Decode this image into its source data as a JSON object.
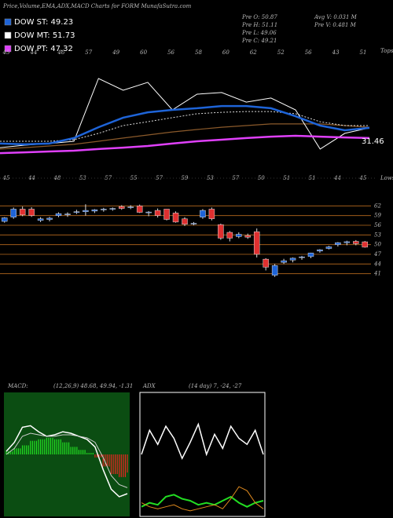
{
  "header": {
    "title": "Price,Volume,EMA,ADX,MACD Charts for FORM MunafaSutra.com",
    "legend": [
      {
        "label": "DOW ST: 49.23",
        "color": "#1e64d8"
      },
      {
        "label": "DOW MT: 51.73",
        "color": "#ffffff"
      },
      {
        "label": "DOW PT: 47.32",
        "color": "#e040fb"
      }
    ],
    "info": [
      "Pre  O: 50.87",
      "Pre  H: 51.11",
      "Pre  L: 49.06",
      "Pre  C: 49.21",
      "Avg V: 0.031 M",
      "Pre  V: 0.481 M"
    ]
  },
  "chart_data": [
    {
      "type": "line",
      "tops_label": "Tops",
      "lows_label": "Lows",
      "annotation": "31.46",
      "tops": [
        "45",
        "44",
        "46",
        "57",
        "49",
        "60",
        "56",
        "58",
        "60",
        "62",
        "52",
        "56",
        "43",
        "51"
      ],
      "lows": [
        "45",
        "44",
        "48",
        "53",
        "57",
        "55",
        "57",
        "59",
        "53",
        "57",
        "50",
        "51",
        "51",
        "44",
        "45"
      ],
      "ylim": [
        20,
        70
      ],
      "series": [
        {
          "color": "#8b5a2b",
          "width": 1.2,
          "values": [
            25.8,
            26.5,
            27.3,
            28.1,
            29.6,
            31.2,
            32.7,
            34.2,
            35.4,
            36.5,
            37.3,
            38.1,
            38.1,
            38.1,
            37.3,
            36.5
          ]
        },
        {
          "color": "#dddddd",
          "width": 1,
          "dash": true,
          "values": [
            29.6,
            29.6,
            29.6,
            30.4,
            33.5,
            37.3,
            39.2,
            41.2,
            43.1,
            43.8,
            44.2,
            44.2,
            43.1,
            39.2,
            37.3,
            37.3
          ]
        },
        {
          "color": "#ffffff",
          "width": 1,
          "values": [
            26.5,
            27.7,
            28.5,
            29.6,
            60.4,
            54.6,
            58.5,
            45,
            52.7,
            53.5,
            48.8,
            50.8,
            45,
            25.8,
            33.5,
            36.2
          ]
        },
        {
          "color": "#1e64d8",
          "width": 2.5,
          "values": [
            28.5,
            28.1,
            28.5,
            31.2,
            36.5,
            41.2,
            43.8,
            45,
            45.8,
            46.9,
            46.9,
            45.8,
            41.9,
            37.3,
            35,
            36.2
          ]
        },
        {
          "color": "#e040fb",
          "width": 2.5,
          "values": [
            23.8,
            24.2,
            24.6,
            25,
            25.8,
            26.5,
            27.3,
            28.5,
            29.6,
            30.4,
            31.2,
            31.9,
            32.3,
            31.9,
            31.5,
            31.2
          ]
        }
      ]
    },
    {
      "type": "candlestick",
      "ylim": [
        38,
        65
      ],
      "yticks": [
        62,
        59,
        56,
        53,
        50,
        47,
        44,
        41
      ],
      "grid_color": "#b86a1e",
      "up_color": "#1e64d8",
      "down_color": "#e03030",
      "open": [
        57.2,
        58.5,
        61,
        61,
        57.5,
        57.8,
        59,
        59.3,
        60,
        60.2,
        60.4,
        60.8,
        61,
        61.8,
        61.5,
        62,
        60,
        60.6,
        61,
        59.8,
        58,
        56.5,
        58.5,
        61,
        56.2,
        53.8,
        52.5,
        52.8,
        54,
        45.5,
        40.5,
        44.5,
        45.2,
        46,
        46.3,
        48,
        48.8,
        50,
        50.6,
        51,
        50.87
      ],
      "high": [
        58.5,
        61.5,
        61.8,
        61.6,
        58.5,
        58.6,
        60,
        60,
        60.8,
        62.5,
        61,
        61.4,
        61.5,
        62.2,
        62.2,
        62.4,
        60.4,
        61.2,
        61,
        60.3,
        58.5,
        57,
        61,
        61.5,
        56.5,
        54.2,
        53.8,
        53.4,
        55,
        45.8,
        44,
        45.6,
        46,
        46.5,
        47.5,
        48.6,
        49.6,
        50.8,
        51.2,
        51.4,
        51.11
      ],
      "low": [
        56.8,
        58,
        58.8,
        58.6,
        57,
        57.2,
        58.5,
        58.6,
        59.5,
        59,
        59.8,
        60.2,
        60.5,
        60.8,
        61,
        59.8,
        58.8,
        58.4,
        57.5,
        56.8,
        55.8,
        56,
        58,
        57.5,
        51.5,
        51,
        52,
        51.8,
        46,
        42,
        40,
        44,
        44.5,
        45.3,
        45.8,
        47.5,
        48.5,
        49.4,
        49.8,
        49.8,
        49.06
      ],
      "close": [
        58.3,
        61,
        59.2,
        59,
        58,
        58.2,
        59.6,
        59.5,
        60.2,
        60.6,
        60.8,
        61,
        61.2,
        61.2,
        61.7,
        60,
        60.1,
        59,
        57.8,
        57,
        56.3,
        56.6,
        60.6,
        58,
        52,
        52,
        53.2,
        52.3,
        47,
        43,
        43.5,
        45,
        45.8,
        46.2,
        47.4,
        48.4,
        49.3,
        50.6,
        50.9,
        50.3,
        49.21
      ]
    },
    {
      "type": "macd",
      "title": "MACD:",
      "subtitle": "(12,26,9) 48.68, 49.94, -1.31",
      "background": "#0b4d12",
      "ylim": [
        -4,
        4
      ],
      "histogram": {
        "pos_color": "#22dd22",
        "neg_color": "#ee2222",
        "values": [
          0.2,
          0.4,
          0.6,
          0.9,
          1.0,
          1.1,
          1.0,
          0.8,
          0.5,
          0.3,
          0.1,
          -0.2,
          -0.8,
          -1.3,
          -1.5,
          -1.2
        ]
      },
      "series": [
        {
          "color": "#ffffff",
          "width": 1.5,
          "values": [
            0.2,
            0.8,
            1.8,
            1.9,
            1.5,
            1.2,
            1.3,
            1.5,
            1.4,
            1.2,
            1.0,
            0.5,
            -1.0,
            -2.3,
            -2.8,
            -2.6
          ]
        },
        {
          "color": "#cccccc",
          "width": 1,
          "values": [
            0,
            0.4,
            1.2,
            1.4,
            1.3,
            1.2,
            1.2,
            1.3,
            1.3,
            1.2,
            1.1,
            0.8,
            -0.2,
            -1.4,
            -2.0,
            -2.2
          ]
        }
      ]
    },
    {
      "type": "line",
      "title": "ADX",
      "subtitle": "(14 day) 7, -24, -27",
      "border": "#ffffff",
      "ylim": [
        0,
        60
      ],
      "series": [
        {
          "color": "#ffffff",
          "width": 1.5,
          "values": [
            30,
            42,
            35,
            44,
            38,
            28,
            36,
            45,
            30,
            40,
            33,
            44,
            38,
            35,
            42,
            30
          ]
        },
        {
          "color": "#22dd22",
          "width": 2,
          "values": [
            4,
            6,
            5,
            9,
            10,
            8,
            7,
            5,
            6,
            5,
            7,
            9,
            6,
            4,
            6,
            7
          ]
        },
        {
          "color": "#e08a1e",
          "width": 1,
          "values": [
            6,
            4,
            3,
            4,
            5,
            3,
            2,
            3,
            4,
            5,
            3,
            8,
            14,
            12,
            6,
            3
          ]
        }
      ]
    }
  ]
}
